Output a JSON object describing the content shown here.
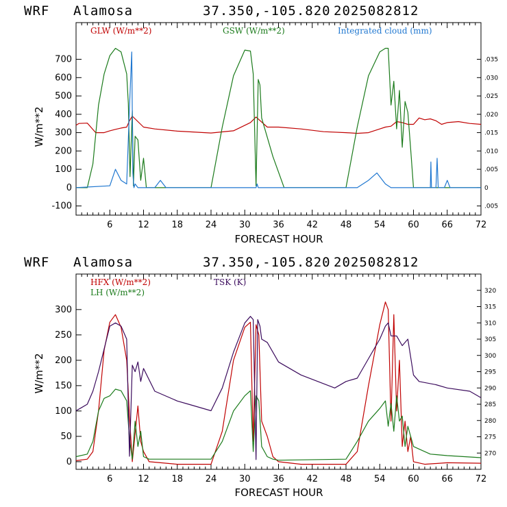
{
  "header": {
    "model": "WRF",
    "station": "Alamosa",
    "coords": "37.350,-105.820",
    "init": "2025082812"
  },
  "colors": {
    "red": "#c00000",
    "green": "#1a7a1a",
    "blue": "#1f77d0",
    "purple": "#3a0a5c"
  },
  "chart_data": [
    {
      "type": "line",
      "xlabel": "FORECAST HOUR",
      "ylabel": "W/m**2",
      "xlim": [
        0,
        72
      ],
      "ylim": [
        -150,
        900
      ],
      "xticks": [
        6,
        12,
        18,
        24,
        30,
        36,
        42,
        48,
        54,
        60,
        66,
        72
      ],
      "yticks": [
        -100,
        0,
        100,
        200,
        300,
        400,
        500,
        600,
        700
      ],
      "right_axis": {
        "ylim": [
          -0.0075,
          0.045
        ],
        "ticks": [
          -0.005,
          0,
          0.005,
          0.01,
          0.015,
          0.02,
          0.025,
          0.03,
          0.035
        ],
        "tick_labels": [
          ".005",
          "0",
          ".005",
          ".010",
          ".015",
          ".020",
          ".025",
          ".030",
          ".035"
        ]
      },
      "legend": [
        "GLW (W/m**2)",
        "GSW (W/m**2)",
        "Integrated cloud (mm)"
      ],
      "series": [
        {
          "name": "GLW (W/m**2)",
          "color": "red",
          "axis": "left",
          "x": [
            0,
            0.5,
            2,
            3.5,
            5,
            6,
            7,
            8,
            9,
            9.5,
            10,
            11,
            12,
            14,
            18,
            24,
            28,
            31,
            32,
            34,
            36,
            40,
            44,
            48,
            50,
            52,
            54,
            55,
            56,
            57,
            58,
            59,
            60,
            61,
            62,
            63,
            64,
            65,
            66,
            68,
            70,
            72
          ],
          "values": [
            340,
            350,
            352,
            300,
            300,
            310,
            318,
            325,
            330,
            365,
            390,
            360,
            330,
            320,
            308,
            298,
            310,
            355,
            385,
            330,
            330,
            320,
            305,
            300,
            296,
            300,
            320,
            330,
            335,
            360,
            355,
            345,
            345,
            380,
            370,
            375,
            365,
            345,
            355,
            360,
            350,
            345
          ]
        },
        {
          "name": "GSW (W/m**2)",
          "color": "green",
          "axis": "left",
          "x": [
            0,
            2,
            3,
            4,
            5,
            6,
            7,
            8,
            9,
            9.3,
            9.6,
            10,
            10.2,
            10.5,
            11,
            11.5,
            12,
            12.5,
            13,
            24,
            26,
            28,
            30,
            31,
            31.5,
            32,
            32.4,
            32.7,
            33,
            35,
            37,
            48,
            50,
            52,
            54,
            55,
            55.5,
            56,
            56.5,
            57,
            57.5,
            58,
            58.5,
            59,
            59.5,
            60,
            72
          ],
          "values": [
            0,
            0,
            130,
            450,
            620,
            720,
            760,
            740,
            620,
            460,
            60,
            420,
            10,
            280,
            260,
            40,
            160,
            0,
            0,
            0,
            330,
            610,
            750,
            745,
            620,
            10,
            590,
            560,
            380,
            170,
            0,
            0,
            330,
            610,
            740,
            760,
            760,
            450,
            580,
            320,
            530,
            220,
            470,
            410,
            210,
            0,
            0
          ]
        },
        {
          "name": "Integrated cloud (mm)",
          "color": "blue",
          "axis": "right",
          "x": [
            0,
            6,
            7,
            8,
            9,
            9.5,
            9.9,
            10.1,
            10.3,
            10.5,
            11,
            14,
            15,
            16,
            32,
            32.2,
            32.4,
            50,
            52,
            53.5,
            55,
            56,
            63,
            63.1,
            63.2,
            64,
            64.2,
            64.4,
            65.5,
            66,
            66.5,
            72
          ],
          "values": [
            0,
            0.0005,
            0.005,
            0.002,
            0.001,
            0.022,
            0.037,
            0.004,
            0,
            0.001,
            0,
            0,
            0.002,
            0,
            0,
            0.001,
            0,
            0,
            0.002,
            0.004,
            0.001,
            0,
            0,
            0.007,
            0,
            0,
            0.008,
            0,
            0,
            0.002,
            0,
            0
          ]
        }
      ]
    },
    {
      "type": "line",
      "xlabel": "FORECAST HOUR",
      "ylabel": "W/m**2",
      "xlim": [
        0,
        72
      ],
      "ylim": [
        -15,
        370
      ],
      "xticks": [
        6,
        12,
        18,
        24,
        30,
        36,
        42,
        48,
        54,
        60,
        66,
        72
      ],
      "yticks": [
        0,
        50,
        100,
        150,
        200,
        250,
        300
      ],
      "right_axis": {
        "ylim": [
          265,
          325
        ],
        "ticks": [
          270,
          275,
          280,
          285,
          290,
          295,
          300,
          305,
          310,
          315,
          320
        ],
        "tick_labels": [
          "270",
          "275",
          "280",
          "285",
          "290",
          "295",
          "300",
          "305",
          "310",
          "315",
          "320"
        ]
      },
      "legend": [
        "HFX (W/m**2)",
        "LH (W/m**2)",
        "TSK (K)"
      ],
      "series": [
        {
          "name": "HFX (W/m**2)",
          "color": "red",
          "axis": "left",
          "x": [
            0,
            2,
            3,
            4,
            5,
            6,
            7,
            8,
            9,
            9.5,
            10,
            11,
            11.5,
            12,
            13,
            18,
            24,
            26,
            28,
            30,
            31,
            31.5,
            32,
            32.5,
            33,
            34,
            35,
            36,
            40,
            48,
            50,
            52,
            54,
            55,
            55.5,
            56,
            56.5,
            57,
            57.5,
            58,
            58.5,
            59,
            59.5,
            60,
            62,
            66,
            72
          ],
          "values": [
            2,
            5,
            20,
            100,
            220,
            275,
            290,
            265,
            200,
            90,
            0,
            110,
            40,
            20,
            0,
            -5,
            -5,
            60,
            200,
            265,
            275,
            40,
            270,
            250,
            80,
            50,
            10,
            0,
            -5,
            -5,
            20,
            150,
            270,
            315,
            300,
            80,
            290,
            100,
            200,
            30,
            80,
            20,
            50,
            0,
            -5,
            -2,
            -3
          ]
        },
        {
          "name": "LH (W/m**2)",
          "color": "green",
          "axis": "left",
          "x": [
            0,
            2,
            3,
            4,
            5,
            6,
            7,
            8,
            9,
            9.5,
            10,
            10.5,
            11,
            11.5,
            12,
            13,
            24,
            26,
            28,
            30,
            31,
            31.5,
            32,
            32.5,
            33,
            34,
            35,
            36,
            48,
            50,
            52,
            54,
            55,
            55.5,
            56,
            56.5,
            57,
            57.5,
            58,
            58.5,
            59,
            60,
            61,
            63,
            66,
            72
          ],
          "values": [
            10,
            15,
            40,
            100,
            125,
            130,
            143,
            140,
            120,
            45,
            5,
            80,
            30,
            60,
            10,
            5,
            5,
            40,
            100,
            130,
            140,
            20,
            130,
            120,
            30,
            10,
            5,
            3,
            5,
            40,
            80,
            105,
            120,
            70,
            115,
            60,
            130,
            80,
            90,
            30,
            70,
            30,
            25,
            15,
            12,
            8
          ]
        },
        {
          "name": "TSK (K)",
          "color": "purple",
          "axis": "right",
          "x": [
            0,
            1,
            2,
            3,
            4,
            5,
            6,
            7,
            8,
            9,
            9.5,
            10,
            10.5,
            11,
            11.5,
            12,
            14,
            18,
            20,
            24,
            26,
            28,
            30,
            31,
            31.5,
            32,
            32.3,
            32.7,
            33,
            34,
            36,
            40,
            46,
            48,
            50,
            52,
            54,
            55,
            55.5,
            56,
            57,
            58,
            59,
            60,
            61,
            64,
            66,
            70,
            72
          ],
          "values": [
            283,
            284,
            285,
            289,
            295,
            302,
            309,
            310,
            309,
            305,
            269,
            297,
            295,
            298,
            292,
            296,
            289,
            286,
            285,
            283,
            290,
            301,
            310,
            312,
            311,
            268,
            311,
            309,
            305,
            304,
            298,
            294,
            290,
            292,
            293,
            299,
            305,
            309,
            310,
            306,
            306,
            303,
            305,
            294,
            292,
            291,
            290,
            289,
            287
          ]
        }
      ]
    }
  ]
}
